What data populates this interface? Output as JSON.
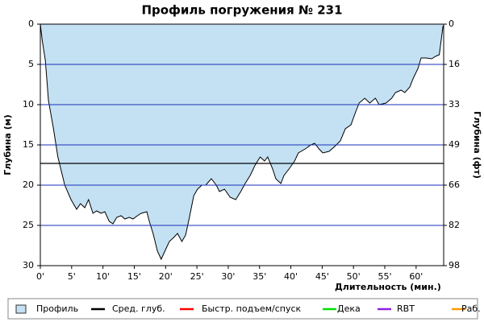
{
  "chart_data": {
    "type": "area",
    "title": "Профиль погружения № 231",
    "x_label": "Длительность (мин.)",
    "y_label": "Глубина (м)",
    "y2_label": "Глубина (фт)",
    "x": [
      0,
      0.3,
      0.8,
      1.3,
      2.1,
      2.8,
      3.9,
      4.9,
      5.8,
      6.4,
      7.1,
      7.7,
      8.4,
      9.0,
      9.7,
      10.3,
      11.0,
      11.6,
      12.2,
      12.9,
      13.5,
      14.2,
      14.8,
      15.5,
      16.1,
      17.0,
      17.4,
      18.0,
      18.7,
      19.3,
      20.0,
      20.6,
      21.3,
      21.9,
      22.6,
      23.2,
      23.8,
      24.5,
      25.1,
      25.8,
      26.4,
      27.3,
      28.1,
      28.6,
      29.4,
      30.3,
      31.2,
      32.0,
      32.7,
      33.5,
      34.3,
      35.1,
      35.8,
      36.3,
      37.1,
      37.6,
      38.4,
      38.9,
      39.7,
      40.6,
      41.2,
      42.3,
      43.2,
      43.8,
      44.5,
      45.1,
      46.1,
      47.0,
      47.9,
      48.7,
      49.6,
      50.3,
      50.9,
      51.8,
      52.6,
      53.5,
      54.1,
      55.2,
      56.1,
      56.7,
      57.6,
      58.2,
      59.0,
      59.5,
      60.3,
      60.8,
      61.6,
      62.5,
      63.1,
      63.7,
      64.0,
      64.3
    ],
    "series": [
      {
        "name": "Профиль",
        "color": "#c3e1f3",
        "line_color": "#000000",
        "values": [
          0,
          2,
          4.5,
          9.5,
          13,
          16.5,
          20,
          21.8,
          23,
          22.3,
          22.8,
          21.8,
          23.5,
          23.2,
          23.5,
          23.3,
          24.5,
          24.8,
          24,
          23.8,
          24.2,
          24,
          24.2,
          23.8,
          23.5,
          23.3,
          24.5,
          26,
          28.2,
          29.2,
          28,
          27,
          26.5,
          26,
          27,
          26.2,
          24,
          21.3,
          20.5,
          20,
          20,
          19.2,
          20,
          20.8,
          20.5,
          21.5,
          21.8,
          20.8,
          19.8,
          18.8,
          17.5,
          16.5,
          17,
          16.5,
          18,
          19.2,
          19.8,
          18.8,
          18,
          17,
          16,
          15.5,
          15,
          14.8,
          15.5,
          16,
          15.8,
          15.2,
          14.5,
          13,
          12.5,
          11,
          9.8,
          9.2,
          9.8,
          9.2,
          10,
          9.8,
          9.2,
          8.5,
          8.2,
          8.5,
          7.8,
          6.8,
          5.5,
          4.2,
          4.2,
          4.3,
          4,
          3.8,
          2,
          0.2
        ]
      }
    ],
    "avg_depth": {
      "name": "Сред. глуб.",
      "color": "#000000",
      "value": 17.3
    },
    "other_legend_entries": [
      {
        "name": "Быстр. подъем/спуск",
        "color": "#ff0000"
      },
      {
        "name": "Дека",
        "color": "#00e000"
      },
      {
        "name": "RBT",
        "color": "#9020e0"
      },
      {
        "name": "Раб.",
        "color": "#ff9900"
      }
    ],
    "xlim": [
      0,
      64.4
    ],
    "xticks": [
      {
        "value": 0,
        "label": "0'"
      },
      {
        "value": 5,
        "label": "5'"
      },
      {
        "value": 10,
        "label": "10'"
      },
      {
        "value": 15,
        "label": "15'"
      },
      {
        "value": 20,
        "label": "20'"
      },
      {
        "value": 25,
        "label": "25'"
      },
      {
        "value": 30,
        "label": "30'"
      },
      {
        "value": 35,
        "label": "35'"
      },
      {
        "value": 40,
        "label": "40'"
      },
      {
        "value": 45,
        "label": "45'"
      },
      {
        "value": 50,
        "label": "50'"
      },
      {
        "value": 55,
        "label": "55'"
      },
      {
        "value": 60,
        "label": "60'"
      }
    ],
    "ylim": [
      0,
      30
    ],
    "y_inverted": true,
    "yticks": [
      0,
      5,
      10,
      15,
      20,
      25,
      30
    ],
    "y2lim": [
      0,
      98.4
    ],
    "y2ticks": [
      0,
      {
        "value": 16.4,
        "label": "16"
      },
      {
        "value": 32.8,
        "label": "33"
      },
      {
        "value": 49.2,
        "label": "49"
      },
      {
        "value": 65.6,
        "label": "66"
      },
      82,
      {
        "value": 98.4,
        "label": "98"
      }
    ],
    "grid": true,
    "grid_color": "#1a2fb8"
  }
}
